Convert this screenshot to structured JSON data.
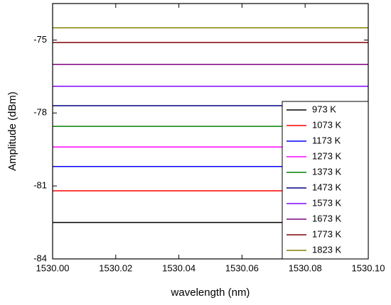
{
  "chart_data": {
    "type": "line",
    "x_label": "wavelength (nm)",
    "y_label": "Amplitude (dBm)",
    "x": [
      1530.0,
      1530.1
    ],
    "xlim": [
      1530.0,
      1530.1
    ],
    "xticks": [
      {
        "value": 1530.0,
        "label": "1530.00"
      },
      {
        "value": 1530.02,
        "label": "1530.02"
      },
      {
        "value": 1530.04,
        "label": "1530.04"
      },
      {
        "value": 1530.06,
        "label": "1530.06"
      },
      {
        "value": 1530.08,
        "label": "1530.08"
      },
      {
        "value": 1530.1,
        "label": "1530.10"
      }
    ],
    "ylim": [
      -84,
      -73.5
    ],
    "yticks": [
      -84,
      -81,
      -78,
      -75
    ],
    "legend": "bottom-right",
    "series": [
      {
        "name": "973 K",
        "color": "#000000",
        "values": [
          -82.5,
          -82.5
        ]
      },
      {
        "name": "1073 K",
        "color": "#ff0000",
        "values": [
          -81.2,
          -81.2
        ]
      },
      {
        "name": "1173 K",
        "color": "#0000ff",
        "values": [
          -80.2,
          -80.2
        ]
      },
      {
        "name": "1273 K",
        "color": "#ff00ff",
        "values": [
          -79.4,
          -79.4
        ]
      },
      {
        "name": "1373 K",
        "color": "#008000",
        "values": [
          -78.55,
          -78.55
        ]
      },
      {
        "name": "1473 K",
        "color": "#000080",
        "values": [
          -77.7,
          -77.7
        ]
      },
      {
        "name": "1573 K",
        "color": "#8000ff",
        "values": [
          -76.9,
          -76.9
        ]
      },
      {
        "name": "1673 K",
        "color": "#800080",
        "values": [
          -76.0,
          -76.0
        ]
      },
      {
        "name": "1773 K",
        "color": "#800000",
        "values": [
          -75.1,
          -75.1
        ]
      },
      {
        "name": "1823 K",
        "color": "#808000",
        "values": [
          -74.5,
          -74.5
        ]
      }
    ]
  }
}
